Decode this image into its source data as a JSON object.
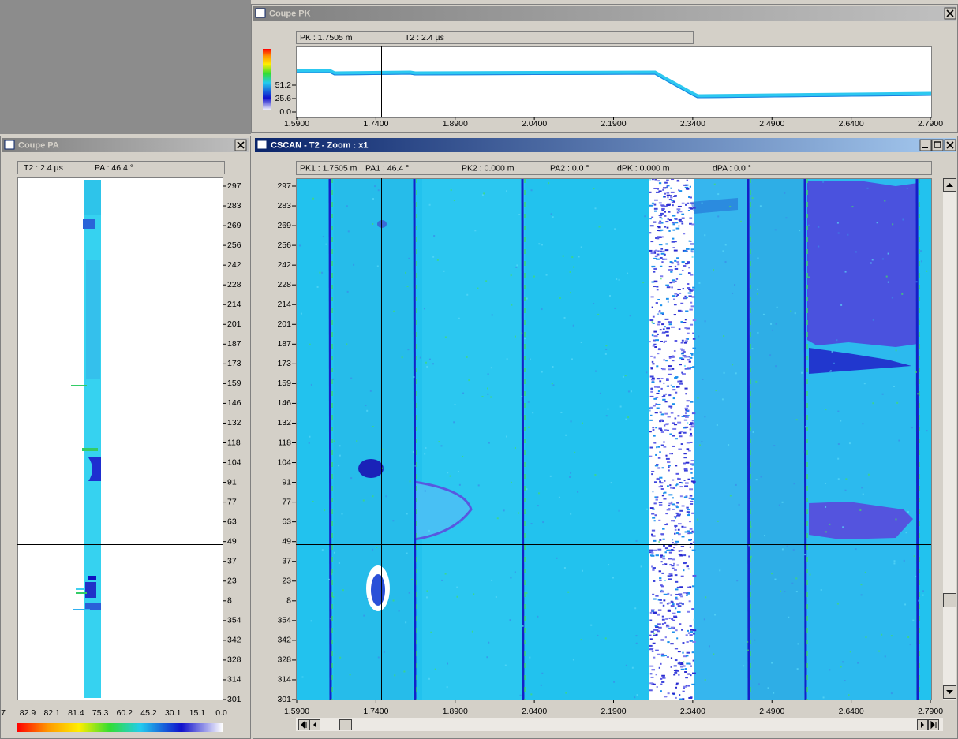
{
  "coupe_pk": {
    "title": "Coupe PK",
    "info": [
      "PK : 1.7505 m",
      "T2 : 2.4 µs"
    ],
    "scale_labels": [
      "51.2",
      "25.6",
      "0.0"
    ],
    "x_ticks": [
      "1.5900",
      "1.7400",
      "1.8900",
      "2.0400",
      "2.1900",
      "2.3400",
      "2.4900",
      "2.6400",
      "2.7900"
    ]
  },
  "coupe_pa": {
    "title": "Coupe PA",
    "info": [
      "T2 : 2.4 µs",
      "PA : 46.4 °"
    ],
    "y_ticks": [
      "297",
      "283",
      "269",
      "256",
      "242",
      "228",
      "214",
      "201",
      "187",
      "173",
      "159",
      "146",
      "132",
      "118",
      "104",
      "91",
      "77",
      "63",
      "49",
      "37",
      "23",
      "8",
      "354",
      "342",
      "328",
      "314",
      "301"
    ],
    "scale_labels": [
      "7",
      "82.9",
      "82.1",
      "81.4",
      "75.3",
      "60.2",
      "45.2",
      "30.1",
      "15.1",
      "0.0"
    ]
  },
  "cscan": {
    "title": "CSCAN - T2 - Zoom : x1",
    "info": [
      "PK1 : 1.7505 m",
      "PA1 : 46.4 °",
      "PK2 : 0.000 m",
      "PA2 : 0.0 °",
      "dPK : 0.000 m",
      "dPA : 0.0 °"
    ],
    "y_ticks": [
      "297",
      "283",
      "269",
      "256",
      "242",
      "228",
      "214",
      "201",
      "187",
      "173",
      "159",
      "146",
      "132",
      "118",
      "104",
      "91",
      "77",
      "63",
      "49",
      "37",
      "23",
      "8",
      "354",
      "342",
      "328",
      "314",
      "301"
    ],
    "x_ticks": [
      "1.5900",
      "1.7400",
      "1.8900",
      "2.0400",
      "2.1900",
      "2.3400",
      "2.4900",
      "2.6400",
      "2.7900"
    ]
  }
}
